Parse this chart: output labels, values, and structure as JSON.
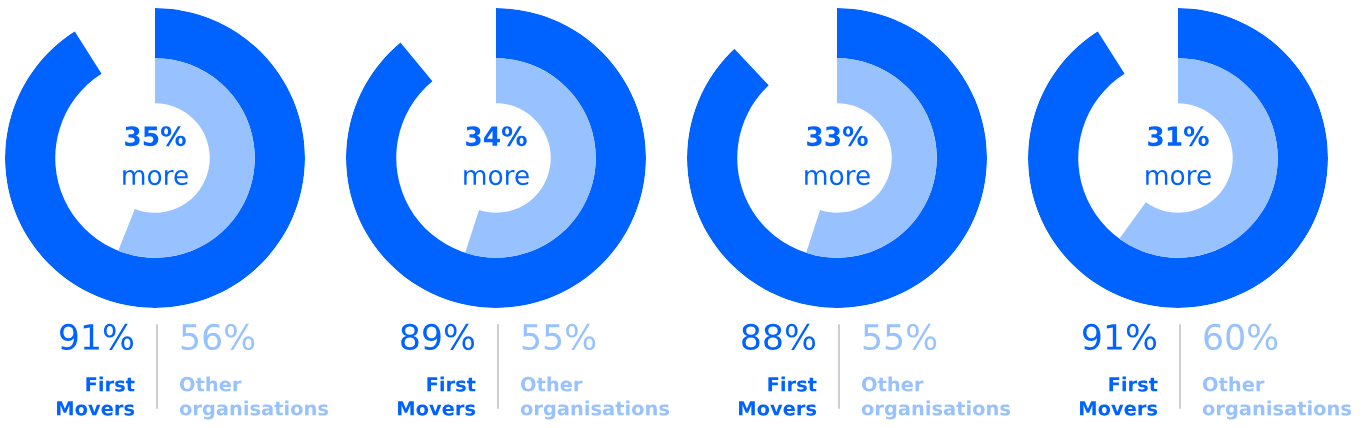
{
  "chart_data": [
    {
      "type": "other",
      "categories": [
        "First Movers",
        "Other organisations"
      ],
      "values": [
        91,
        56
      ],
      "value_labels": [
        "91%",
        "56%"
      ],
      "colors": [
        "#0062ff",
        "#97c1ff"
      ],
      "annotations": [
        "35%",
        "more"
      ]
    },
    {
      "type": "other",
      "categories": [
        "First Movers",
        "Other organisations"
      ],
      "values": [
        89,
        55
      ],
      "value_labels": [
        "89%",
        "55%"
      ],
      "colors": [
        "#0062ff",
        "#97c1ff"
      ],
      "annotations": [
        "34%",
        "more"
      ]
    },
    {
      "type": "other",
      "categories": [
        "First Movers",
        "Other organisations"
      ],
      "values": [
        88,
        55
      ],
      "value_labels": [
        "88%",
        "55%"
      ],
      "colors": [
        "#0062ff",
        "#97c1ff"
      ],
      "annotations": [
        "33%",
        "more"
      ]
    },
    {
      "type": "other",
      "categories": [
        "First Movers",
        "Other organisations"
      ],
      "values": [
        91,
        60
      ],
      "value_labels": [
        "91%",
        "60%"
      ],
      "colors": [
        "#0062ff",
        "#97c1ff"
      ],
      "annotations": [
        "31%",
        "more"
      ]
    }
  ]
}
